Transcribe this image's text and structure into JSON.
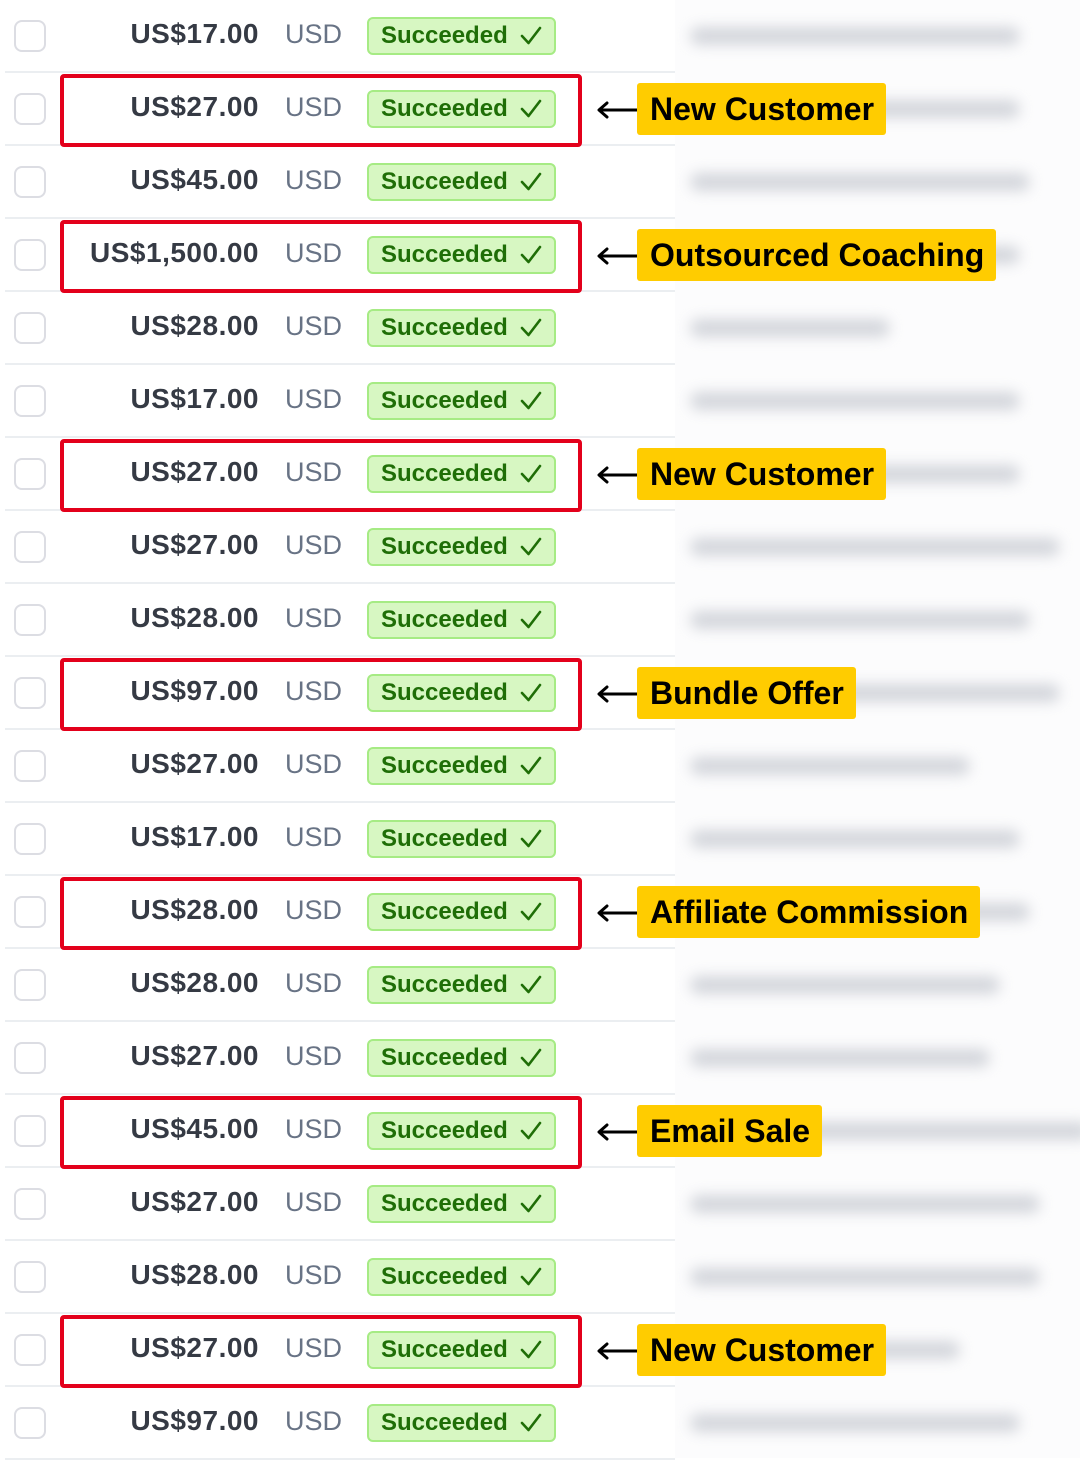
{
  "rows": [
    {
      "amount": "US$17.00",
      "currency": "USD",
      "status": "Succeeded"
    },
    {
      "amount": "US$27.00",
      "currency": "USD",
      "status": "Succeeded",
      "annotation": "New Customer"
    },
    {
      "amount": "US$45.00",
      "currency": "USD",
      "status": "Succeeded"
    },
    {
      "amount": "US$1,500.00",
      "currency": "USD",
      "status": "Succeeded",
      "annotation": "Outsourced Coaching"
    },
    {
      "amount": "US$28.00",
      "currency": "USD",
      "status": "Succeeded"
    },
    {
      "amount": "US$17.00",
      "currency": "USD",
      "status": "Succeeded"
    },
    {
      "amount": "US$27.00",
      "currency": "USD",
      "status": "Succeeded",
      "annotation": "New Customer"
    },
    {
      "amount": "US$27.00",
      "currency": "USD",
      "status": "Succeeded"
    },
    {
      "amount": "US$28.00",
      "currency": "USD",
      "status": "Succeeded"
    },
    {
      "amount": "US$97.00",
      "currency": "USD",
      "status": "Succeeded",
      "annotation": "Bundle Offer"
    },
    {
      "amount": "US$27.00",
      "currency": "USD",
      "status": "Succeeded"
    },
    {
      "amount": "US$17.00",
      "currency": "USD",
      "status": "Succeeded"
    },
    {
      "amount": "US$28.00",
      "currency": "USD",
      "status": "Succeeded",
      "annotation": "Affiliate Commission"
    },
    {
      "amount": "US$28.00",
      "currency": "USD",
      "status": "Succeeded"
    },
    {
      "amount": "US$27.00",
      "currency": "USD",
      "status": "Succeeded"
    },
    {
      "amount": "US$45.00",
      "currency": "USD",
      "status": "Succeeded",
      "annotation": "Email Sale"
    },
    {
      "amount": "US$27.00",
      "currency": "USD",
      "status": "Succeeded"
    },
    {
      "amount": "US$28.00",
      "currency": "USD",
      "status": "Succeeded"
    },
    {
      "amount": "US$27.00",
      "currency": "USD",
      "status": "Succeeded",
      "annotation": "New Customer"
    },
    {
      "amount": "US$97.00",
      "currency": "USD",
      "status": "Succeeded"
    }
  ],
  "colors": {
    "highlight": "#e3001b",
    "annotation": "#ffcc00",
    "badge_bg": "#d7f7c2",
    "badge_text": "#1f6e07"
  }
}
